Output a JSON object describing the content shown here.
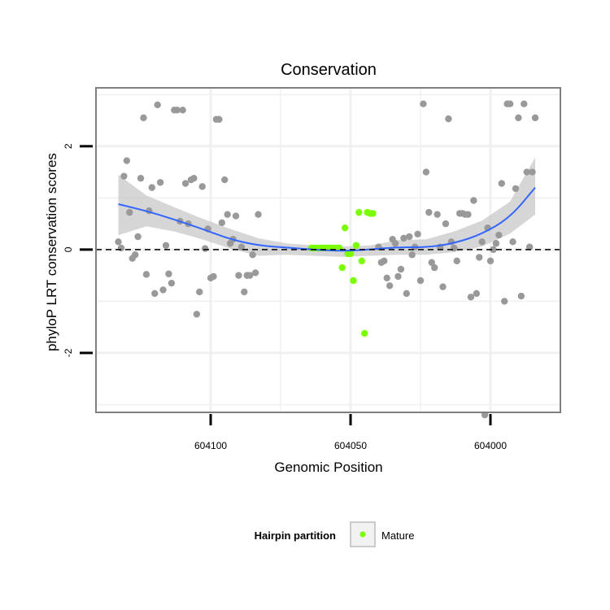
{
  "chart_data": {
    "type": "scatter",
    "title": "Conservation",
    "xlabel": "Genomic Position",
    "ylabel": "phyloP LRT conservation scores",
    "x_reversed": true,
    "xlim": [
      603975,
      604141
    ],
    "ylim": [
      -3.15,
      3.13
    ],
    "x_ticks": [
      604100,
      604050,
      604000
    ],
    "y_ticks": [
      -2,
      0,
      2
    ],
    "reference_line_y": 0,
    "legend": {
      "title": "Hairpin partition",
      "entries": [
        {
          "label": "Mature",
          "color": "#7cfc00"
        }
      ],
      "position": "bottom"
    },
    "colors": {
      "other": "#999999",
      "mature": "#7cfc00",
      "smooth": "#3366ff",
      "band": "#c8c8c8",
      "panel_border": "#7f7f7f",
      "grid": "#f0f0f0"
    },
    "series": [
      {
        "name": "Other",
        "points": [
          [
            604133,
            0.15
          ],
          [
            604132,
            0.03
          ],
          [
            604131,
            1.42
          ],
          [
            604130,
            1.72
          ],
          [
            604129,
            0.72
          ],
          [
            604128,
            -0.17
          ],
          [
            604127,
            -0.1
          ],
          [
            604126,
            0.25
          ],
          [
            604125,
            1.38
          ],
          [
            604124,
            2.55
          ],
          [
            604123,
            -0.48
          ],
          [
            604122,
            0.75
          ],
          [
            604121,
            1.2
          ],
          [
            604120,
            -0.85
          ],
          [
            604119,
            2.8
          ],
          [
            604118,
            1.3
          ],
          [
            604117,
            -0.78
          ],
          [
            604116,
            0.08
          ],
          [
            604115,
            -0.47
          ],
          [
            604114,
            -0.65
          ],
          [
            604113,
            2.7
          ],
          [
            604112,
            2.7
          ],
          [
            604111,
            0.55
          ],
          [
            604110,
            2.7
          ],
          [
            604109,
            1.28
          ],
          [
            604108,
            0.5
          ],
          [
            604107,
            1.35
          ],
          [
            604106,
            1.38
          ],
          [
            604105,
            -1.25
          ],
          [
            604104,
            -0.82
          ],
          [
            604103,
            1.22
          ],
          [
            604102,
            0.02
          ],
          [
            604101,
            0.4
          ],
          [
            604100,
            -0.55
          ],
          [
            604099,
            -0.52
          ],
          [
            604098,
            2.52
          ],
          [
            604097,
            2.52
          ],
          [
            604096,
            0.52
          ],
          [
            604095,
            1.35
          ],
          [
            604094,
            0.68
          ],
          [
            604093,
            0.12
          ],
          [
            604092,
            0.2
          ],
          [
            604091,
            0.65
          ],
          [
            604090,
            -0.5
          ],
          [
            604089,
            0.05
          ],
          [
            604088,
            -0.82
          ],
          [
            604087,
            -0.5
          ],
          [
            604086,
            -0.5
          ],
          [
            604085,
            -0.1
          ],
          [
            604084,
            -0.45
          ],
          [
            604083,
            0.68
          ],
          [
            604040,
            0.05
          ],
          [
            604039,
            -0.25
          ],
          [
            604038,
            -0.22
          ],
          [
            604037,
            -0.55
          ],
          [
            604036,
            -0.7
          ],
          [
            604035,
            0.2
          ],
          [
            604034,
            0.12
          ],
          [
            604033,
            -0.52
          ],
          [
            604032,
            -0.38
          ],
          [
            604031,
            0.22
          ],
          [
            604030,
            -0.85
          ],
          [
            604029,
            0.25
          ],
          [
            604028,
            -0.1
          ],
          [
            604027,
            0.05
          ],
          [
            604026,
            0.3
          ],
          [
            604025,
            -0.6
          ],
          [
            604024,
            2.82
          ],
          [
            604023,
            1.5
          ],
          [
            604022,
            0.72
          ],
          [
            604021,
            -0.25
          ],
          [
            604020,
            -0.35
          ],
          [
            604019,
            0.68
          ],
          [
            604018,
            0.05
          ],
          [
            604017,
            -0.72
          ],
          [
            604016,
            0.5
          ],
          [
            604015,
            2.53
          ],
          [
            604014,
            0.15
          ],
          [
            604013,
            0.03
          ],
          [
            604012,
            -0.22
          ],
          [
            604011,
            0.7
          ],
          [
            604010,
            0.7
          ],
          [
            604009,
            0.68
          ],
          [
            604008,
            0.68
          ],
          [
            604007,
            -0.92
          ],
          [
            604006,
            0.95
          ],
          [
            604005,
            -0.85
          ],
          [
            604004,
            -0.15
          ],
          [
            604003,
            0.15
          ],
          [
            604002,
            -3.2
          ],
          [
            604001,
            0.42
          ],
          [
            604000,
            -0.22
          ],
          [
            603999,
            0.0
          ],
          [
            603998,
            0.12
          ],
          [
            603997,
            0.28
          ],
          [
            603996,
            1.28
          ],
          [
            603995,
            -1.0
          ],
          [
            603994,
            2.82
          ],
          [
            603993,
            2.82
          ],
          [
            603992,
            0.15
          ],
          [
            603991,
            1.18
          ],
          [
            603990,
            2.55
          ],
          [
            603989,
            -0.9
          ],
          [
            603988,
            2.82
          ],
          [
            603987,
            1.5
          ],
          [
            603986,
            0.05
          ],
          [
            603985,
            1.5
          ],
          [
            603984,
            2.55
          ]
        ]
      },
      {
        "name": "Mature",
        "points": [
          [
            604064,
            0.03
          ],
          [
            604063,
            0.03
          ],
          [
            604062,
            0.03
          ],
          [
            604061,
            0.03
          ],
          [
            604060,
            0.03
          ],
          [
            604059,
            0.03
          ],
          [
            604058,
            0.03
          ],
          [
            604057,
            0.03
          ],
          [
            604056,
            0.03
          ],
          [
            604055,
            0.03
          ],
          [
            604054,
            0.03
          ],
          [
            604053,
            -0.35
          ],
          [
            604052,
            0.42
          ],
          [
            604051,
            -0.08
          ],
          [
            604050,
            -0.08
          ],
          [
            604049,
            -0.6
          ],
          [
            604048,
            0.08
          ],
          [
            604047,
            0.72
          ],
          [
            604046,
            -0.22
          ],
          [
            604045,
            -1.62
          ],
          [
            604044,
            0.72
          ],
          [
            604043,
            0.7
          ],
          [
            604042,
            0.7
          ]
        ]
      }
    ],
    "smooth_fit": [
      [
        604133,
        0.88
      ],
      [
        604123,
        0.75
      ],
      [
        604113,
        0.58
      ],
      [
        604103,
        0.4
      ],
      [
        604093,
        0.2
      ],
      [
        604083,
        0.08
      ],
      [
        604073,
        0.04
      ],
      [
        604063,
        0.0
      ],
      [
        604053,
        -0.03
      ],
      [
        604043,
        0.0
      ],
      [
        604033,
        0.05
      ],
      [
        604023,
        0.04
      ],
      [
        604013,
        0.12
      ],
      [
        604003,
        0.3
      ],
      [
        603993,
        0.62
      ],
      [
        603984,
        1.2
      ]
    ],
    "smooth_band_upper": [
      [
        604133,
        1.45
      ],
      [
        604123,
        1.05
      ],
      [
        604113,
        0.82
      ],
      [
        604103,
        0.6
      ],
      [
        604093,
        0.4
      ],
      [
        604083,
        0.22
      ],
      [
        604073,
        0.12
      ],
      [
        604063,
        0.08
      ],
      [
        604053,
        0.06
      ],
      [
        604043,
        0.08
      ],
      [
        604033,
        0.18
      ],
      [
        604023,
        0.2
      ],
      [
        604013,
        0.35
      ],
      [
        604003,
        0.56
      ],
      [
        603993,
        0.93
      ],
      [
        603984,
        1.78
      ]
    ],
    "smooth_band_lower": [
      [
        604133,
        0.28
      ],
      [
        604123,
        0.45
      ],
      [
        604113,
        0.35
      ],
      [
        604103,
        0.2
      ],
      [
        604093,
        0.02
      ],
      [
        604083,
        -0.12
      ],
      [
        604073,
        -0.1
      ],
      [
        604063,
        -0.12
      ],
      [
        604053,
        -0.14
      ],
      [
        604043,
        -0.12
      ],
      [
        604033,
        -0.1
      ],
      [
        604023,
        -0.1
      ],
      [
        604013,
        -0.05
      ],
      [
        604003,
        0.06
      ],
      [
        603993,
        0.31
      ],
      [
        603984,
        0.68
      ]
    ]
  }
}
